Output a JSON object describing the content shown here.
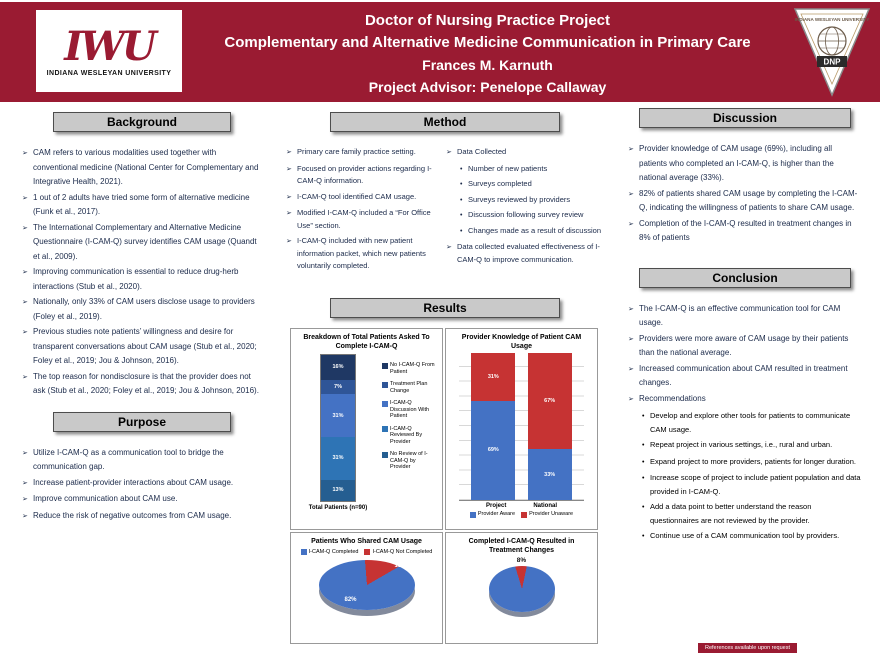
{
  "colors": {
    "brand_maroon": "#9A1B32",
    "section_header_bg": "#C9C9C9"
  },
  "header": {
    "monogram": "IWU",
    "logo_caption": "INDIANA WESLEYAN UNIVERSITY",
    "title_line1": "Doctor of Nursing Practice Project",
    "title_line2": "Complementary and Alternative Medicine Communication in Primary Care",
    "author": "Frances M. Karnuth",
    "advisor": "Project Advisor: Penelope Callaway",
    "badge_caption": "INDIANA WESLEYAN UNIVERSITY",
    "badge_label": "DNP"
  },
  "sections": {
    "background": {
      "title": "Background",
      "bullets": [
        "CAM refers to various modalities used together with conventional medicine (National Center for Complementary and Integrative Health, 2021).",
        "1 out of 2 adults have tried some form of alternative medicine (Funk et al., 2017).",
        "The International Complementary and Alternative Medicine Questionnaire (I-CAM-Q) survey identifies CAM usage (Quandt et al., 2009).",
        "Improving communication is essential to reduce drug-herb interactions (Stub et al., 2020).",
        "Nationally, only 33% of CAM users disclose usage to providers (Foley et al., 2019).",
        "Previous studies note patients’ willingness and desire for transparent conversations about CAM usage (Stub et al., 2020; Foley et al., 2019; Jou & Johnson, 2016).",
        "The top reason for nondisclosure is that the provider does not ask (Stub et al., 2020; Foley et al., 2019; Jou & Johnson, 2016)."
      ]
    },
    "purpose": {
      "title": "Purpose",
      "bullets": [
        "Utilize I-CAM-Q  as a communication tool to bridge the communication gap.",
        "Increase patient-provider interactions about CAM usage.",
        "Improve communication about CAM use.",
        "Reduce the risk of negative outcomes from CAM usage."
      ]
    },
    "method": {
      "title": "Method",
      "left_bullets": [
        "Primary care family practice setting.",
        "Focused on provider actions regarding I-CAM-Q information.",
        "I-CAM-Q tool identified CAM usage.",
        "Modified I-CAM-Q included a “For Office Use” section.",
        "I-CAM-Q included with new patient information packet, which new patients voluntarily completed."
      ],
      "data_collected_label": "Data Collected",
      "data_collected_items": [
        "Number of new patients",
        "Surveys completed",
        "Surveys reviewed by providers",
        "Discussion following survey review",
        "Changes made as a result of discussion"
      ],
      "closing_bullet": "Data collected evaluated effectiveness of I-CAM-Q to improve communication."
    },
    "results": {
      "title": "Results"
    },
    "discussion": {
      "title": "Discussion",
      "bullets": [
        "Provider knowledge of CAM usage (69%), including all patients who completed an I-CAM-Q, is higher than the national average (33%).",
        "82% of patients shared CAM usage by completing the I-CAM-Q, indicating the willingness of patients to share CAM usage.",
        "Completion of the I-CAM-Q resulted in treatment changes in 8% of patients"
      ]
    },
    "conclusion": {
      "title": "Conclusion",
      "bullets": [
        "The I-CAM-Q is an effective communication tool for CAM usage.",
        "Providers were more aware of CAM usage by their patients than the national average.",
        "Increased communication about CAM resulted in treatment changes.",
        "Recommendations"
      ],
      "recommendations": [
        "Develop and explore other tools for patients to communicate CAM usage.",
        "Repeat project in various settings, i.e., rural and urban.",
        "Expand project to more providers, patients for longer duration.",
        "Increase scope of project to include patient population and data provided in I-CAM-Q.",
        "Add a data point to better understand the reason questionnaires are not reviewed by the provider.",
        "Continue use of a CAM communication tool by providers."
      ]
    }
  },
  "chart_data": [
    {
      "type": "bar",
      "variant": "stacked-single-column",
      "title": "Breakdown of Total Patients Asked To Complete I-CAM-Q",
      "xlabel": "Total Patients (n=90)",
      "segments": [
        {
          "label": "No I-CAM-Q From Patient",
          "value": 16,
          "color": "#1F3864"
        },
        {
          "label": "Treatment Plan Change",
          "value": 7,
          "color": "#2F5597"
        },
        {
          "label": "I-CAM-Q Discussion With Patient",
          "value": 31,
          "color": "#4472C4"
        },
        {
          "label": "I-CAM-Q Reviewed By Provider",
          "value": 31,
          "color": "#2E74B5"
        },
        {
          "label": "No Review of I-CAM-Q by Provider",
          "value": 13,
          "color": "#255E91"
        }
      ]
    },
    {
      "type": "bar",
      "variant": "stacked-100",
      "title": "Provider Knowledge of Patient CAM Usage",
      "categories": [
        "Project",
        "National"
      ],
      "series": [
        {
          "name": "Provider Aware",
          "color": "#4472C4",
          "values": [
            69,
            33
          ]
        },
        {
          "name": "Provider Unaware",
          "color": "#C63333",
          "values": [
            31,
            67
          ]
        }
      ],
      "ylim": [
        0,
        100
      ],
      "grid": true,
      "legend_position": "bottom"
    },
    {
      "type": "pie",
      "title": "Patients Who Shared CAM Usage",
      "rotation_deg": 60,
      "slices": [
        {
          "label": "I-CAM-Q Completed",
          "value": 82,
          "text": "82%",
          "color": "#4472C4"
        },
        {
          "label": "I-CAM-Q Not Completed",
          "value": 18,
          "text": "18%",
          "color": "#C63333"
        }
      ],
      "legend_position": "top"
    },
    {
      "type": "pie",
      "title": "Completed I-CAM-Q Resulted in Treatment Changes",
      "callout": "8%",
      "rotation_deg": 12,
      "slices": [
        {
          "value": 92,
          "color": "#4472C4"
        },
        {
          "value": 8,
          "color": "#C63333"
        }
      ]
    }
  ],
  "footer": {
    "note": "References available upon request"
  }
}
